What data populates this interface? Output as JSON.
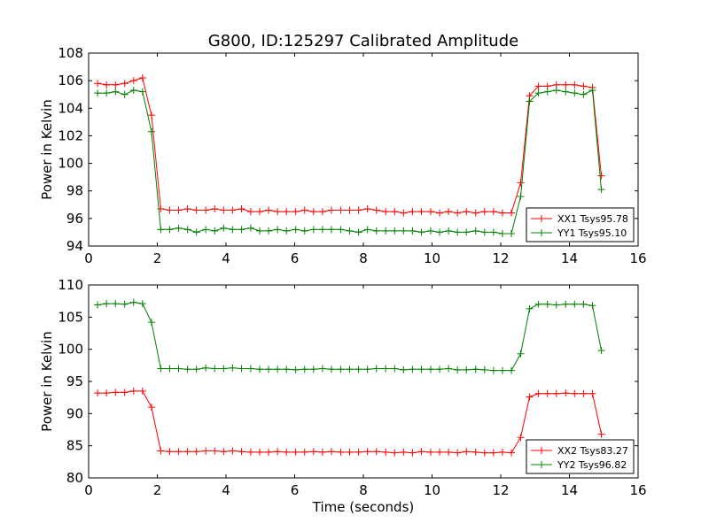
{
  "figure": {
    "title": "G800, ID:125297 Calibrated Amplitude",
    "xlabel": "Time (seconds)"
  },
  "chart_data": [
    {
      "type": "line",
      "ylabel": "Power in Kelvin",
      "xlim": [
        0,
        16
      ],
      "ylim": [
        94,
        108
      ],
      "xticks": [
        0,
        2,
        4,
        6,
        8,
        10,
        12,
        14,
        16
      ],
      "yticks": [
        94,
        96,
        98,
        100,
        102,
        104,
        106,
        108
      ],
      "legend_position": "lower-right",
      "x": [
        0.26,
        0.52,
        0.78,
        1.05,
        1.31,
        1.57,
        1.83,
        2.1,
        2.36,
        2.62,
        2.88,
        3.14,
        3.41,
        3.67,
        3.93,
        4.19,
        4.45,
        4.72,
        4.98,
        5.24,
        5.5,
        5.76,
        6.03,
        6.29,
        6.55,
        6.81,
        7.07,
        7.34,
        7.6,
        7.86,
        8.12,
        8.38,
        8.65,
        8.91,
        9.17,
        9.43,
        9.69,
        9.96,
        10.22,
        10.48,
        10.74,
        11.0,
        11.27,
        11.53,
        11.79,
        12.05,
        12.31,
        12.58,
        12.84,
        13.1,
        13.36,
        13.62,
        13.89,
        14.15,
        14.41,
        14.67,
        14.93
      ],
      "series": [
        {
          "name": "XX1 Tsys95.78",
          "color": "#ff0000",
          "values": [
            105.8,
            105.7,
            105.7,
            105.8,
            106.0,
            106.2,
            103.5,
            96.7,
            96.6,
            96.6,
            96.7,
            96.6,
            96.6,
            96.7,
            96.6,
            96.6,
            96.7,
            96.5,
            96.5,
            96.6,
            96.5,
            96.5,
            96.5,
            96.6,
            96.5,
            96.5,
            96.6,
            96.6,
            96.6,
            96.6,
            96.7,
            96.6,
            96.5,
            96.5,
            96.4,
            96.5,
            96.5,
            96.5,
            96.4,
            96.5,
            96.4,
            96.5,
            96.4,
            96.5,
            96.5,
            96.4,
            96.4,
            98.6,
            104.9,
            105.6,
            105.6,
            105.7,
            105.7,
            105.7,
            105.6,
            105.5,
            99.1
          ]
        },
        {
          "name": "YY1 Tsys95.10",
          "color": "#008000",
          "values": [
            105.1,
            105.1,
            105.2,
            105.0,
            105.3,
            105.2,
            102.3,
            95.2,
            95.2,
            95.3,
            95.2,
            95.0,
            95.2,
            95.1,
            95.3,
            95.2,
            95.2,
            95.3,
            95.1,
            95.1,
            95.2,
            95.1,
            95.2,
            95.1,
            95.2,
            95.2,
            95.2,
            95.2,
            95.1,
            95.0,
            95.2,
            95.1,
            95.1,
            95.1,
            95.1,
            95.1,
            95.0,
            95.1,
            95.0,
            95.1,
            95.0,
            95.0,
            95.1,
            95.0,
            95.0,
            94.9,
            94.9,
            97.6,
            104.5,
            105.1,
            105.2,
            105.3,
            105.2,
            105.1,
            105.0,
            105.3,
            98.1
          ]
        }
      ]
    },
    {
      "type": "line",
      "ylabel": "Power in Kelvin",
      "xlim": [
        0,
        16
      ],
      "ylim": [
        80,
        110
      ],
      "xticks": [
        0,
        2,
        4,
        6,
        8,
        10,
        12,
        14,
        16
      ],
      "yticks": [
        80,
        85,
        90,
        95,
        100,
        105,
        110
      ],
      "legend_position": "lower-right",
      "x": [
        0.26,
        0.52,
        0.78,
        1.05,
        1.31,
        1.57,
        1.83,
        2.1,
        2.36,
        2.62,
        2.88,
        3.14,
        3.41,
        3.67,
        3.93,
        4.19,
        4.45,
        4.72,
        4.98,
        5.24,
        5.5,
        5.76,
        6.03,
        6.29,
        6.55,
        6.81,
        7.07,
        7.34,
        7.6,
        7.86,
        8.12,
        8.38,
        8.65,
        8.91,
        9.17,
        9.43,
        9.69,
        9.96,
        10.22,
        10.48,
        10.74,
        11.0,
        11.27,
        11.53,
        11.79,
        12.05,
        12.31,
        12.58,
        12.84,
        13.1,
        13.36,
        13.62,
        13.89,
        14.15,
        14.41,
        14.67,
        14.93
      ],
      "series": [
        {
          "name": "XX2 Tsys83.27",
          "color": "#ff0000",
          "values": [
            93.2,
            93.2,
            93.3,
            93.3,
            93.5,
            93.5,
            91.0,
            84.2,
            84.1,
            84.1,
            84.1,
            84.1,
            84.2,
            84.2,
            84.1,
            84.2,
            84.1,
            84.0,
            84.0,
            84.0,
            84.1,
            84.0,
            84.0,
            84.0,
            84.1,
            84.0,
            84.1,
            84.0,
            84.0,
            84.0,
            84.1,
            84.1,
            84.0,
            83.9,
            84.0,
            83.9,
            84.1,
            84.0,
            84.0,
            84.0,
            83.9,
            84.1,
            84.0,
            83.9,
            83.9,
            84.0,
            83.9,
            86.3,
            92.6,
            93.1,
            93.1,
            93.1,
            93.2,
            93.1,
            93.1,
            93.1,
            86.8
          ]
        },
        {
          "name": "YY2 Tsys96.82",
          "color": "#008000",
          "values": [
            106.9,
            107.1,
            107.1,
            107.0,
            107.3,
            107.1,
            104.2,
            97.0,
            97.0,
            97.0,
            96.9,
            96.9,
            97.1,
            97.0,
            97.0,
            97.1,
            97.0,
            97.0,
            96.9,
            96.9,
            96.9,
            96.9,
            96.8,
            96.9,
            96.9,
            97.0,
            96.9,
            96.9,
            96.9,
            96.9,
            96.9,
            97.0,
            97.0,
            97.0,
            96.8,
            96.9,
            96.9,
            96.9,
            96.9,
            97.0,
            96.8,
            96.8,
            96.9,
            96.8,
            96.7,
            96.7,
            96.7,
            99.3,
            106.3,
            107.0,
            107.0,
            106.9,
            107.0,
            107.0,
            107.0,
            106.8,
            99.8
          ]
        }
      ]
    }
  ]
}
